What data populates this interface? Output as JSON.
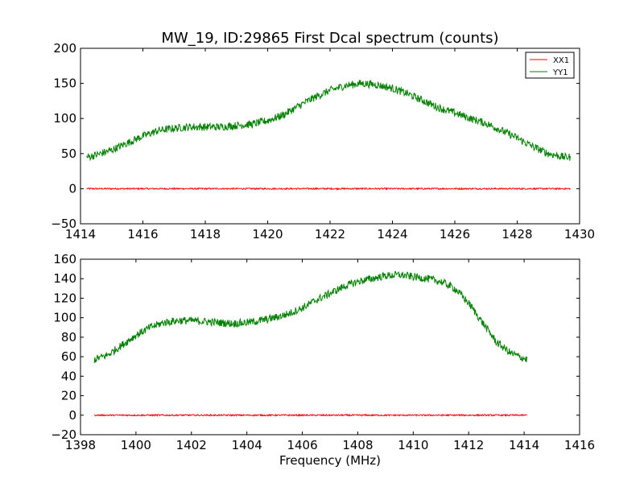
{
  "title": "MW_19, ID:29865 First Dcal spectrum (counts)",
  "xlabel": "Frequency (MHz)",
  "colors": {
    "XX1": "#ff0000",
    "YY1": "#008000"
  },
  "chart_data": [
    {
      "type": "line",
      "title": "MW_19, ID:29865 First Dcal spectrum (counts)",
      "xlabel": "",
      "ylabel": "",
      "xlim": [
        1414,
        1430
      ],
      "ylim": [
        -50,
        200
      ],
      "xticks": [
        1414,
        1416,
        1418,
        1420,
        1422,
        1424,
        1426,
        1428,
        1430
      ],
      "yticks": [
        -50,
        0,
        50,
        100,
        150,
        200
      ],
      "legend": {
        "position": "top-right",
        "entries": [
          "XX1",
          "YY1"
        ]
      },
      "grid": false,
      "series": [
        {
          "name": "XX1",
          "color": "#ff0000",
          "x": [
            1414.2,
            1415,
            1416,
            1417,
            1418,
            1419,
            1420,
            1421,
            1422,
            1423,
            1424,
            1425,
            1426,
            1427,
            1428,
            1429,
            1429.7
          ],
          "y": [
            0,
            0,
            0,
            0,
            0,
            0,
            0,
            0,
            0,
            0,
            0,
            0,
            0,
            0,
            0,
            0,
            0
          ]
        },
        {
          "name": "YY1",
          "color": "#008000",
          "x": [
            1414.2,
            1414.5,
            1415,
            1415.5,
            1416,
            1416.5,
            1417,
            1417.5,
            1418,
            1418.5,
            1419,
            1419.5,
            1420,
            1420.5,
            1421,
            1421.5,
            1422,
            1422.5,
            1423,
            1423.5,
            1424,
            1424.5,
            1425,
            1425.5,
            1426,
            1426.5,
            1427,
            1427.5,
            1428,
            1428.5,
            1429,
            1429.5,
            1429.7
          ],
          "y": [
            45,
            48,
            55,
            65,
            75,
            83,
            86,
            88,
            88,
            88,
            90,
            92,
            97,
            105,
            118,
            130,
            140,
            147,
            150,
            148,
            143,
            135,
            125,
            115,
            108,
            100,
            93,
            83,
            72,
            60,
            50,
            45,
            45
          ]
        }
      ]
    },
    {
      "type": "line",
      "title": "",
      "xlabel": "Frequency (MHz)",
      "ylabel": "",
      "xlim": [
        1398,
        1416
      ],
      "ylim": [
        -20,
        160
      ],
      "xticks": [
        1398,
        1400,
        1402,
        1404,
        1406,
        1408,
        1410,
        1412,
        1414,
        1416
      ],
      "yticks": [
        -20,
        0,
        20,
        40,
        60,
        80,
        100,
        120,
        140,
        160
      ],
      "grid": false,
      "series": [
        {
          "name": "XX1",
          "color": "#ff0000",
          "x": [
            1398.5,
            1399.5,
            1400.5,
            1401.5,
            1402.5,
            1403.5,
            1404.5,
            1405.5,
            1406.5,
            1407.5,
            1408.5,
            1409.5,
            1410.5,
            1411.5,
            1412.5,
            1413.5,
            1414.1
          ],
          "y": [
            0,
            0,
            0,
            0,
            0,
            0,
            0,
            0,
            0,
            0,
            0,
            0,
            0,
            0,
            0,
            0,
            0
          ]
        },
        {
          "name": "YY1",
          "color": "#008000",
          "x": [
            1398.5,
            1399,
            1399.5,
            1400,
            1400.5,
            1401,
            1401.5,
            1402,
            1402.5,
            1403,
            1403.5,
            1404,
            1404.5,
            1405,
            1405.5,
            1406,
            1406.5,
            1407,
            1407.5,
            1408,
            1408.5,
            1409,
            1409.5,
            1410,
            1410.5,
            1411,
            1411.5,
            1412,
            1412.5,
            1413,
            1413.5,
            1414.1
          ],
          "y": [
            57,
            62,
            72,
            82,
            90,
            95,
            97,
            97,
            96,
            95,
            94,
            95,
            97,
            100,
            104,
            110,
            118,
            125,
            132,
            137,
            140,
            143,
            144,
            142,
            140,
            137,
            130,
            115,
            95,
            75,
            64,
            57
          ]
        }
      ]
    }
  ]
}
